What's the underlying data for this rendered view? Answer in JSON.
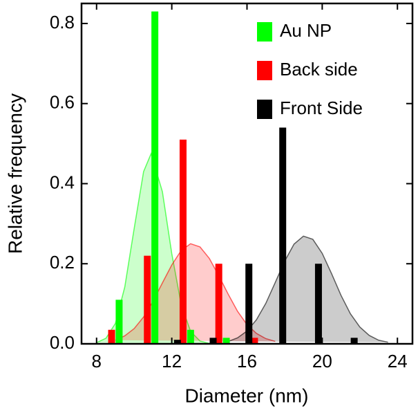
{
  "chart_data": {
    "type": "bar",
    "x_label": "Diameter (nm)",
    "y_label": "Relative frequency",
    "xlim": [
      7.2,
      24.8
    ],
    "xticks": [
      8,
      12,
      16,
      20,
      24
    ],
    "ylim": [
      0,
      0.85
    ],
    "yticks": [
      {
        "value": 0,
        "label": "0.0"
      },
      0.2,
      0.4,
      0.6,
      0.8
    ],
    "legend": "upper right",
    "series": [
      {
        "name": "Au NP",
        "color": "#00ff00",
        "x": [
          9.2,
          11.1,
          13.0,
          14.9
        ],
        "values": [
          0.11,
          0.83,
          0.035,
          0.015
        ],
        "fit": {
          "x": [
            8,
            8.5,
            9,
            9.5,
            10,
            10.5,
            10.9,
            11.5,
            12,
            12.5,
            13,
            13.5,
            14
          ],
          "values": [
            0.003,
            0.014,
            0.051,
            0.142,
            0.288,
            0.43,
            0.475,
            0.38,
            0.225,
            0.098,
            0.031,
            0.007,
            0.001
          ]
        }
      },
      {
        "name": "Back side",
        "color": "#ff0000",
        "x": [
          8.8,
          10.7,
          12.6,
          14.5,
          16.4
        ],
        "values": [
          0.035,
          0.22,
          0.51,
          0.2,
          0.015
        ],
        "fit": {
          "x": [
            9,
            9.5,
            10,
            10.5,
            11,
            11.5,
            12,
            12.5,
            13,
            13.5,
            14,
            14.5,
            15,
            15.5,
            16,
            16.5,
            17,
            17.5
          ],
          "values": [
            0.009,
            0.02,
            0.038,
            0.067,
            0.106,
            0.152,
            0.197,
            0.233,
            0.25,
            0.242,
            0.213,
            0.17,
            0.124,
            0.081,
            0.048,
            0.026,
            0.013,
            0.006
          ]
        }
      },
      {
        "name": "Front Side",
        "color": "#000000",
        "x": [
          12.3,
          14.2,
          16.1,
          17.9,
          19.8,
          21.7
        ],
        "values": [
          0.01,
          0.015,
          0.2,
          0.54,
          0.2,
          0.015
        ],
        "fit": {
          "x": [
            15,
            15.5,
            16,
            16.5,
            17,
            17.5,
            18,
            18.5,
            19,
            19.5,
            20,
            20.5,
            21,
            21.5,
            22,
            22.5,
            23,
            23.5
          ],
          "values": [
            0.006,
            0.015,
            0.032,
            0.06,
            0.101,
            0.153,
            0.206,
            0.249,
            0.269,
            0.261,
            0.226,
            0.175,
            0.121,
            0.075,
            0.042,
            0.021,
            0.009,
            0.004
          ]
        }
      }
    ]
  }
}
